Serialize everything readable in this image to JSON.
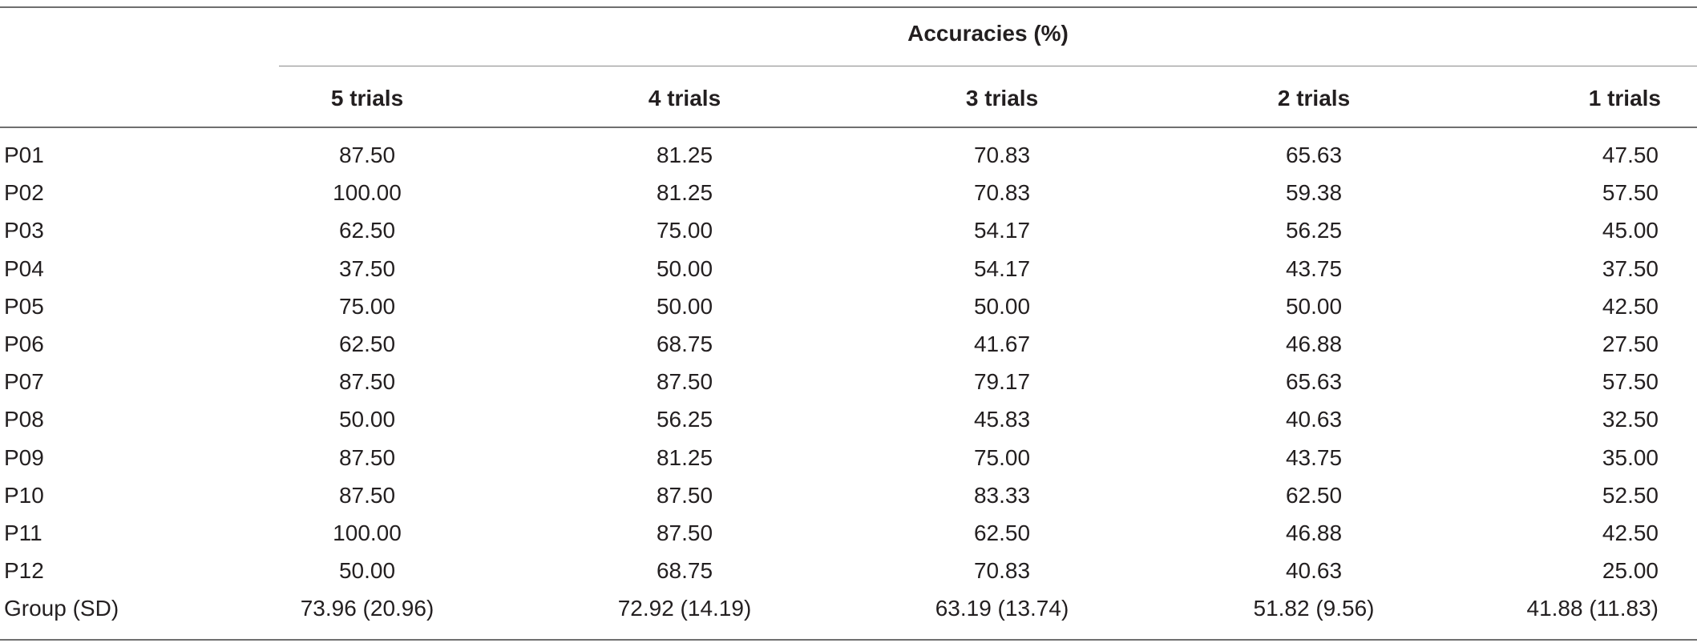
{
  "table": {
    "super_header": "Accuracies (%)",
    "columns": [
      "5 trials",
      "4 trials",
      "3 trials",
      "2 trials",
      "1 trials"
    ],
    "rows": [
      {
        "label": "P01",
        "values": [
          "87.50",
          "81.25",
          "70.83",
          "65.63",
          "47.50"
        ]
      },
      {
        "label": "P02",
        "values": [
          "100.00",
          "81.25",
          "70.83",
          "59.38",
          "57.50"
        ]
      },
      {
        "label": "P03",
        "values": [
          "62.50",
          "75.00",
          "54.17",
          "56.25",
          "45.00"
        ]
      },
      {
        "label": "P04",
        "values": [
          "37.50",
          "50.00",
          "54.17",
          "43.75",
          "37.50"
        ]
      },
      {
        "label": "P05",
        "values": [
          "75.00",
          "50.00",
          "50.00",
          "50.00",
          "42.50"
        ]
      },
      {
        "label": "P06",
        "values": [
          "62.50",
          "68.75",
          "41.67",
          "46.88",
          "27.50"
        ]
      },
      {
        "label": "P07",
        "values": [
          "87.50",
          "87.50",
          "79.17",
          "65.63",
          "57.50"
        ]
      },
      {
        "label": "P08",
        "values": [
          "50.00",
          "56.25",
          "45.83",
          "40.63",
          "32.50"
        ]
      },
      {
        "label": "P09",
        "values": [
          "87.50",
          "81.25",
          "75.00",
          "43.75",
          "35.00"
        ]
      },
      {
        "label": "P10",
        "values": [
          "87.50",
          "87.50",
          "83.33",
          "62.50",
          "52.50"
        ]
      },
      {
        "label": "P11",
        "values": [
          "100.00",
          "87.50",
          "62.50",
          "46.88",
          "42.50"
        ]
      },
      {
        "label": "P12",
        "values": [
          "50.00",
          "68.75",
          "70.83",
          "40.63",
          "25.00"
        ]
      },
      {
        "label": "Group (SD)",
        "values": [
          "73.96 (20.96)",
          "72.92 (14.19)",
          "63.19 (13.74)",
          "51.82 (9.56)",
          "41.88 (11.83)"
        ]
      }
    ]
  }
}
